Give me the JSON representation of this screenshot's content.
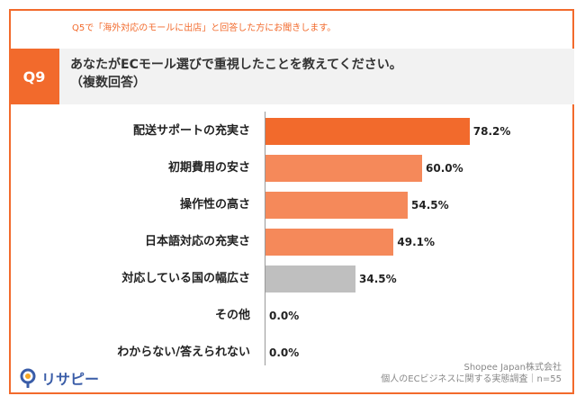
{
  "pre_question": "Q5で「海外対応のモールに出店」と回答した方にお聞きします。",
  "question": {
    "number": "Q9",
    "text": "あなたがECモール選びで重視したことを教えてください。",
    "note": "（複数回答）"
  },
  "chart_data": {
    "type": "bar",
    "orientation": "horizontal",
    "title": "あなたがECモール選びで重視したことを教えてください。",
    "categories": [
      "配送サポートの充実さ",
      "初期費用の安さ",
      "操作性の高さ",
      "日本語対応の充実さ",
      "対応している国の幅広さ",
      "その他",
      "わからない/答えられない"
    ],
    "values": [
      78.2,
      60.0,
      54.5,
      49.1,
      34.5,
      0.0,
      0.0
    ],
    "value_labels": [
      "78.2%",
      "60.0%",
      "54.5%",
      "49.1%",
      "34.5%",
      "0.0%",
      "0.0%"
    ],
    "xlim": [
      0,
      100
    ],
    "unit": "%",
    "bar_colors": [
      "#f26a2c",
      "#f5895a",
      "#f5895a",
      "#f5895a",
      "#bfbfbf",
      "#bfbfbf",
      "#bfbfbf"
    ]
  },
  "footer": {
    "company": "Shopee Japan株式会社",
    "survey": "個人のECビジネスに関する実態調査｜n=55"
  },
  "logo": {
    "text": "リサピー",
    "icon": "magnifier-icon",
    "colors": {
      "ring": "#3a5da8",
      "dot": "#f5a623"
    }
  },
  "colors": {
    "accent": "#f26a2c",
    "header_bg": "#f2f2f2"
  }
}
